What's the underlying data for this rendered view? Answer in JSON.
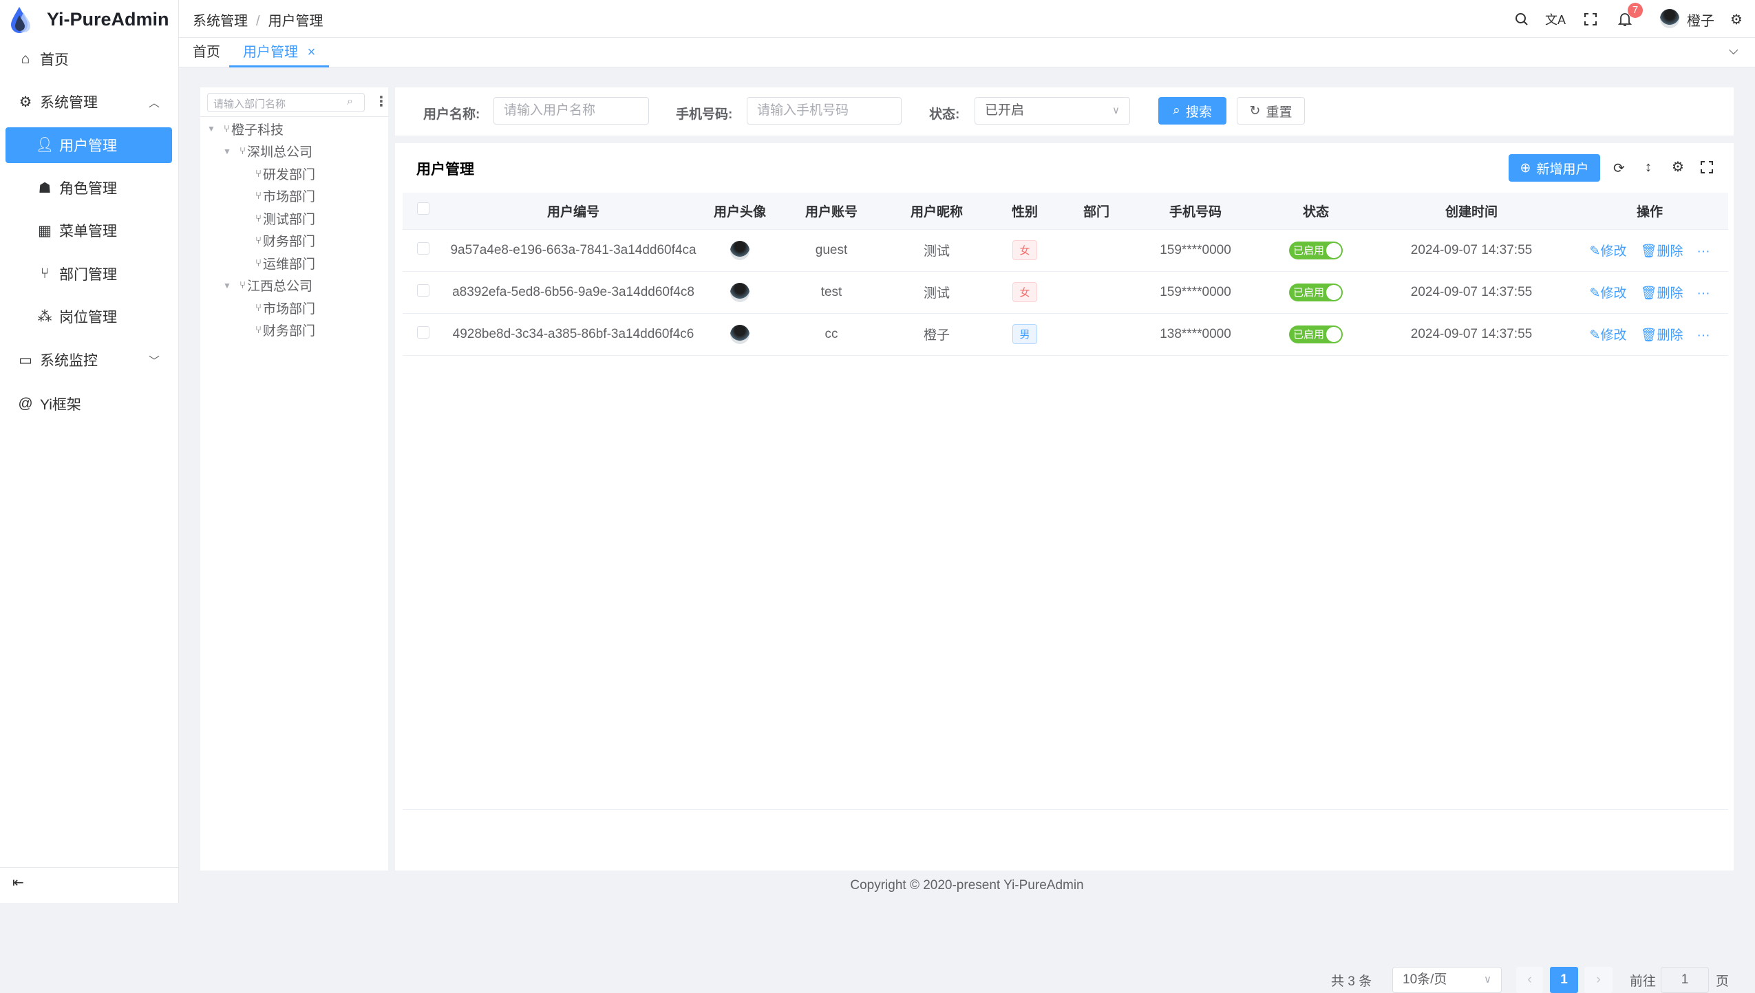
{
  "app": {
    "title": "Yi-PureAdmin"
  },
  "sidebar": {
    "items": [
      {
        "label": "首页",
        "icon": "home-icon"
      },
      {
        "label": "系统管理",
        "icon": "gear-icon",
        "expanded": true
      },
      {
        "label": "用户管理",
        "icon": "user-icon",
        "active": true
      },
      {
        "label": "角色管理",
        "icon": "role-icon"
      },
      {
        "label": "菜单管理",
        "icon": "menu-grid-icon"
      },
      {
        "label": "部门管理",
        "icon": "branch-icon"
      },
      {
        "label": "岗位管理",
        "icon": "org-icon"
      },
      {
        "label": "系统监控",
        "icon": "monitor-icon",
        "expanded": false
      },
      {
        "label": "Yi框架",
        "icon": "at-icon"
      }
    ]
  },
  "header": {
    "breadcrumb": [
      "系统管理",
      "用户管理"
    ],
    "notifications": "7",
    "username": "橙子"
  },
  "tabs": [
    {
      "label": "首页"
    },
    {
      "label": "用户管理",
      "active": true
    }
  ],
  "tree": {
    "placeholder": "请输入部门名称",
    "nodes": [
      {
        "label": "橙子科技",
        "level": 0,
        "expandable": true
      },
      {
        "label": "深圳总公司",
        "level": 1,
        "expandable": true
      },
      {
        "label": "研发部门",
        "level": 2
      },
      {
        "label": "市场部门",
        "level": 2
      },
      {
        "label": "测试部门",
        "level": 2
      },
      {
        "label": "财务部门",
        "level": 2
      },
      {
        "label": "运维部门",
        "level": 2
      },
      {
        "label": "江西总公司",
        "level": 1,
        "expandable": true
      },
      {
        "label": "市场部门",
        "level": 2
      },
      {
        "label": "财务部门",
        "level": 2
      }
    ]
  },
  "search": {
    "username_label": "用户名称:",
    "username_placeholder": "请输入用户名称",
    "phone_label": "手机号码:",
    "phone_placeholder": "请输入手机号码",
    "status_label": "状态:",
    "status_value": "已开启",
    "search_btn": "搜索",
    "reset_btn": "重置"
  },
  "table": {
    "title": "用户管理",
    "add_btn": "新增用户",
    "columns": [
      "用户编号",
      "用户头像",
      "用户账号",
      "用户昵称",
      "性别",
      "部门",
      "手机号码",
      "状态",
      "创建时间",
      "操作"
    ],
    "rows": [
      {
        "id": "9a57a4e8-e196-663a-7841-3a14dd60f4ca",
        "account": "guest",
        "nickname": "测试",
        "gender": "女",
        "dept": "",
        "phone": "159****0000",
        "status": "已启用",
        "created": "2024-09-07 14:37:55"
      },
      {
        "id": "a8392efa-5ed8-6b56-9a9e-3a14dd60f4c8",
        "account": "test",
        "nickname": "测试",
        "gender": "女",
        "dept": "",
        "phone": "159****0000",
        "status": "已启用",
        "created": "2024-09-07 14:37:55"
      },
      {
        "id": "4928be8d-3c34-a385-86bf-3a14dd60f4c6",
        "account": "cc",
        "nickname": "橙子",
        "gender": "男",
        "dept": "",
        "phone": "138****0000",
        "status": "已启用",
        "created": "2024-09-07 14:37:55"
      }
    ],
    "edit": "修改",
    "delete": "删除",
    "more": "···"
  },
  "pagination": {
    "total": "共 3 条",
    "page_size": "10条/页",
    "current": "1",
    "goto_label": "前往",
    "goto_value": "1",
    "page_unit": "页"
  },
  "footer": {
    "copyright": "Copyright © 2020-present Yi-PureAdmin"
  },
  "colors": {
    "primary": "#409eff",
    "success": "#67c23a",
    "danger": "#f56c6c"
  }
}
